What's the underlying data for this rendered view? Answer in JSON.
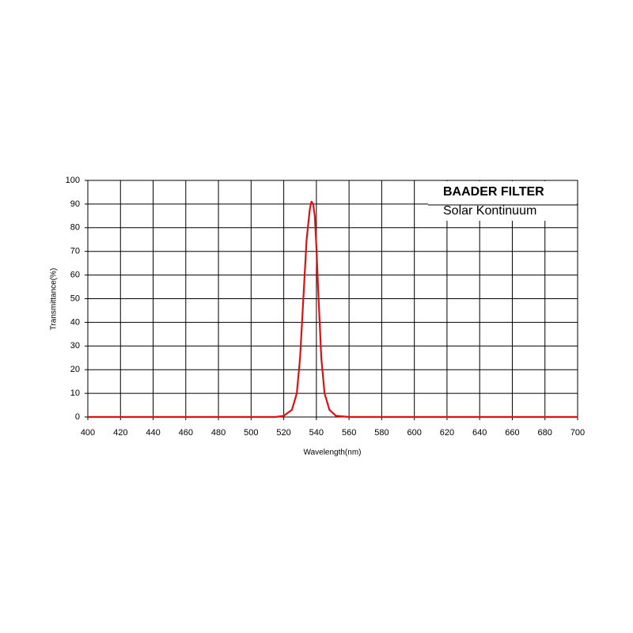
{
  "chart_data": {
    "type": "line",
    "title": "BAADER FILTER",
    "subtitle": "Solar Kontinuum",
    "xlabel": "Wavelength(nm)",
    "ylabel": "Transmittance(%)",
    "x": [
      400,
      515,
      520,
      525,
      528,
      530,
      532,
      534,
      536,
      537,
      538,
      539,
      540,
      541,
      542,
      543,
      545,
      548,
      552,
      560,
      700
    ],
    "series": [
      {
        "name": "Solar Kontinuum",
        "color": "#e01010",
        "values": [
          0,
          0,
          0.5,
          3,
          10,
          25,
          50,
          75,
          88,
          91,
          90,
          85,
          72,
          55,
          40,
          25,
          10,
          3,
          0.5,
          0,
          0
        ]
      }
    ],
    "xlim": [
      400,
      700
    ],
    "xticks": [
      400,
      420,
      440,
      460,
      480,
      500,
      520,
      540,
      560,
      580,
      600,
      620,
      640,
      660,
      680,
      700
    ],
    "ylim": [
      0,
      100
    ],
    "yticks": [
      0,
      10,
      20,
      30,
      40,
      50,
      60,
      70,
      80,
      90,
      100
    ],
    "grid": true
  }
}
